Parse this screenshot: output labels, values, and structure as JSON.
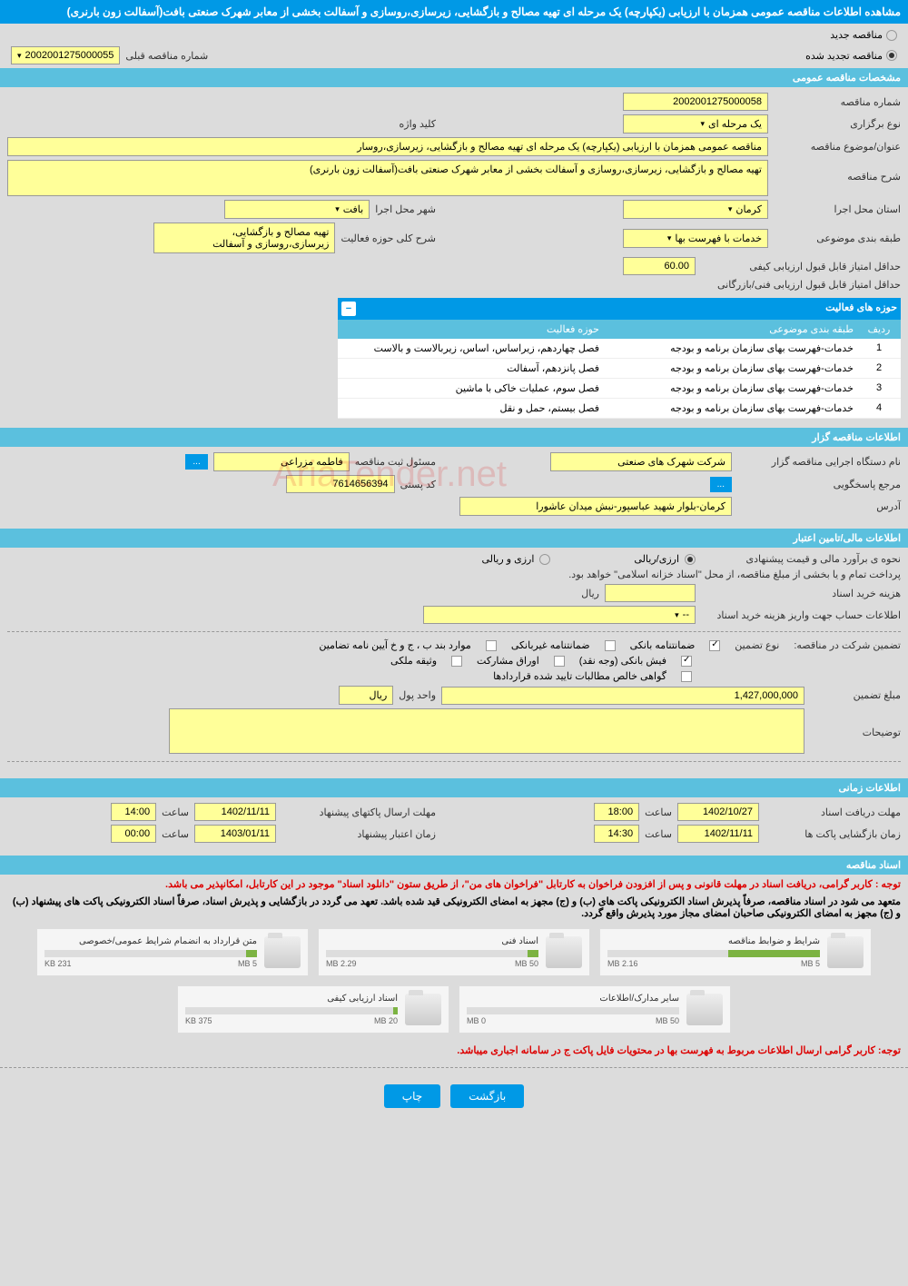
{
  "header": {
    "title": "مشاهده اطلاعات مناقصه عمومی همزمان با ارزیابی (یکپارچه) یک مرحله ای تهیه مصالح و بازگشایی، زیرسازی،روسازی و آسفالت بخشی از معابر شهرک صنعتی بافت(آسفالت زون بارنری)"
  },
  "tender_mode": {
    "new_label": "مناقصه جدید",
    "renewed_label": "مناقصه تجدید شده",
    "prev_number_label": "شماره مناقصه قبلی",
    "prev_number": "2002001275000055"
  },
  "sections": {
    "general": "مشخصات مناقصه عمومی",
    "organizer": "اطلاعات مناقصه گزار",
    "financial": "اطلاعات مالی/تامین اعتبار",
    "timing": "اطلاعات زمانی",
    "documents": "اسناد مناقصه"
  },
  "general": {
    "number_label": "شماره مناقصه",
    "number": "2002001275000058",
    "type_label": "نوع برگزاری",
    "type": "یک مرحله ای",
    "keyword_label": "کلید واژه",
    "subject_label": "عنوان/موضوع مناقصه",
    "subject": "مناقصه عمومی همزمان با ارزیابی (یکپارچه) یک مرحله ای  تهیه مصالح و بازگشایی، زیرسازی،روسار",
    "desc_label": "شرح مناقصه",
    "desc": "تهیه مصالح و بازگشایی، زیرسازی،روسازی و آسفالت بخشی از معابر شهرک صنعتی بافت(آسفالت زون بارنری)",
    "province_label": "استان محل اجرا",
    "province": "کرمان",
    "city_label": "شهر محل اجرا",
    "city": "بافت",
    "category_label": "طبقه بندی موضوعی",
    "category": "خدمات با فهرست بها",
    "activity_scope_label": "شرح کلی حوزه فعالیت",
    "activity_scope": "تهیه مصالح و بازگشایی، زیرسازی،روسازی و آسفالت",
    "min_quality_label": "حداقل امتیاز قابل قبول ارزیابی کیفی",
    "min_quality": "60.00",
    "min_tech_label": "حداقل امتیاز قابل قبول ارزیابی فنی/بازرگانی"
  },
  "activity_table": {
    "title": "حوزه های فعالیت",
    "col_idx": "ردیف",
    "col_cat": "طبقه بندی موضوعی",
    "col_act": "حوزه فعالیت",
    "rows": [
      {
        "idx": "1",
        "cat": "خدمات-فهرست بهای سازمان برنامه و بودجه",
        "act": "فصل چهاردهم، زیراساس، اساس، زیربالاست و بالاست"
      },
      {
        "idx": "2",
        "cat": "خدمات-فهرست بهای سازمان برنامه و بودجه",
        "act": "فصل پانزدهم، آسفالت"
      },
      {
        "idx": "3",
        "cat": "خدمات-فهرست بهای سازمان برنامه و بودجه",
        "act": "فصل سوم، عملیات خاکی با ماشین"
      },
      {
        "idx": "4",
        "cat": "خدمات-فهرست بهای سازمان برنامه و بودجه",
        "act": "فصل بیستم، حمل و نقل"
      }
    ]
  },
  "organizer": {
    "org_label": "نام دستگاه اجرایی مناقصه گزار",
    "org": "شرکت شهرک های صنعتی",
    "contact_label": "مسئول ثبت مناقصه",
    "contact": "فاطمه مزراعی",
    "ref_label": "مرجع پاسخگویی",
    "ref_btn": "...",
    "postal_label": "کد پستی",
    "postal": "7614656394",
    "address_label": "آدرس",
    "address": "کرمان-بلوار شهید عباسپور-نبش میدان عاشورا"
  },
  "financial": {
    "price_method_label": "نحوه ی برآورد مالی و قیمت پیشنهادی",
    "opt_rial_fx": "ارزی/ریالی",
    "opt_rial": "ارزی و ریالی",
    "payment_note": "پرداخت تمام و یا بخشی از مبلغ مناقصه، از محل \"اسناد خزانه اسلامی\" خواهد بود.",
    "doc_fee_label": "هزینه خرید اسناد",
    "doc_fee_unit": "ریال",
    "account_label": "اطلاعات حساب جهت واریز هزینه خرید اسناد",
    "account_placeholder": "--",
    "guarantee_label": "تضمین شرکت در مناقصه:",
    "guarantee_type_label": "نوع تضمین",
    "chk_bank": "ضمانتنامه بانکی",
    "chk_nonbank": "ضمانتنامه غیربانکی",
    "chk_clauses": "موارد بند ب ، ج و خ آیین نامه تضامین",
    "chk_cash": "فیش بانکی (وجه نقد)",
    "chk_securities": "اوراق مشارکت",
    "chk_property": "وثیقه ملکی",
    "chk_net": "گواهی خالص مطالبات تایید شده قراردادها",
    "amount_label": "مبلغ تضمین",
    "amount": "1,427,000,000",
    "currency_label": "واحد پول",
    "currency": "ریال",
    "notes_label": "توضیحات"
  },
  "timing": {
    "receive_label": "مهلت دریافت اسناد",
    "receive_date": "1402/10/27",
    "receive_time_label": "ساعت",
    "receive_time": "18:00",
    "submit_label": "مهلت ارسال پاکتهای پیشنهاد",
    "submit_date": "1402/11/11",
    "submit_time": "14:00",
    "open_label": "زمان بازگشایی پاکت ها",
    "open_date": "1402/11/11",
    "open_time": "14:30",
    "validity_label": "زمان اعتبار پیشنهاد",
    "validity_date": "1403/01/11",
    "validity_time": "00:00"
  },
  "documents": {
    "notice1": "توجه : کاربر گرامی، دریافت اسناد در مهلت قانونی و پس از افزودن فراخوان به کارتابل \"فراخوان های من\"، از طریق ستون \"دانلود اسناد\" موجود در این کارتابل، امکانپذیر می باشد.",
    "notice2": "متعهد می شود در اسناد مناقصه، صرفاً پذیرش اسناد الکترونیکی پاکت های (ب) و (ج) مجهز به امضای الکترونیکی قید شده باشد. تعهد می گردد در بازگشایی و پذیرش اسناد، صرفاً اسناد الکترونیکی پاکت های پیشنهاد (ب) و (ج) مجهز به امضای الکترونیکی صاحبان امضای مجاز مورد پذیرش واقع گردد.",
    "notice3": "توجه: کاربر گرامی ارسال اطلاعات مربوط به فهرست بها در محتویات فایل پاکت ج در سامانه اجباری میباشد.",
    "files": [
      {
        "name": "شرایط و ضوابط مناقصه",
        "used": "2.16 MB",
        "total": "5 MB",
        "pct": 43
      },
      {
        "name": "اسناد فنی",
        "used": "2.29 MB",
        "total": "50 MB",
        "pct": 5
      },
      {
        "name": "متن قرارداد به انضمام شرایط عمومی/خصوصی",
        "used": "231 KB",
        "total": "5 MB",
        "pct": 5
      },
      {
        "name": "سایر مدارک/اطلاعات",
        "used": "0 MB",
        "total": "50 MB",
        "pct": 0
      },
      {
        "name": "اسناد ارزیابی کیفی",
        "used": "375 KB",
        "total": "20 MB",
        "pct": 2
      }
    ]
  },
  "footer": {
    "back": "بازگشت",
    "print": "چاپ"
  },
  "watermark": "AriaTender.net",
  "colors": {
    "primary": "#0099e6",
    "secondary": "#5bc0de",
    "highlight": "#ffff99",
    "bg": "#dcdcdc"
  }
}
